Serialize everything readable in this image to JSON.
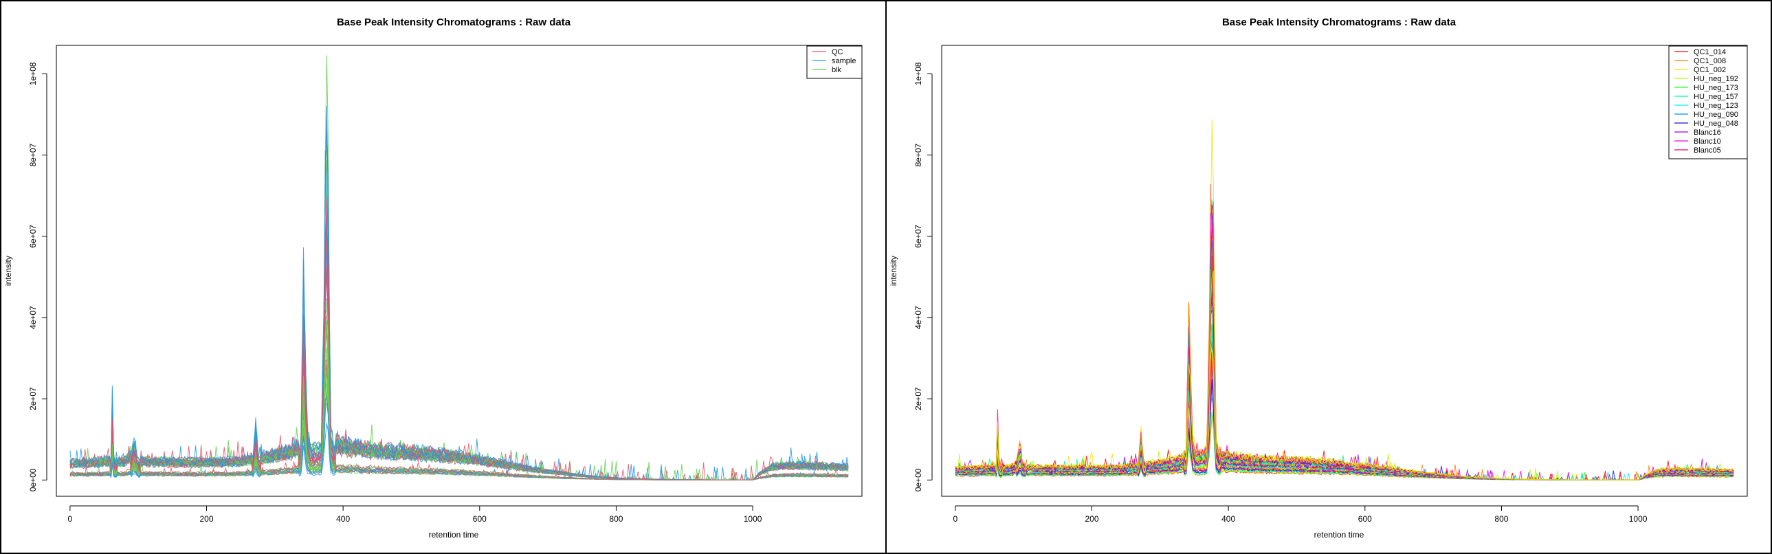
{
  "chart_data": [
    {
      "type": "line",
      "title": "Base Peak Intensity Chromatograms : Raw data",
      "xlabel": "retention time",
      "ylabel": "intensity",
      "xlim": [
        -20,
        1160
      ],
      "ylim": [
        -4000000,
        107000000
      ],
      "x_ticks": [
        0,
        200,
        400,
        600,
        800,
        1000
      ],
      "x_tick_labels": [
        "0",
        "200",
        "400",
        "600",
        "800",
        "1000"
      ],
      "y_ticks": [
        0,
        20000000,
        40000000,
        60000000,
        80000000,
        100000000
      ],
      "y_tick_labels": [
        "0e+00",
        "2e+07",
        "4e+07",
        "6e+07",
        "8e+07",
        "1e+08"
      ],
      "grid": false,
      "legend_position": "top-right",
      "legend": [
        {
          "name": "QC",
          "color": "#DF536B"
        },
        {
          "name": "sample",
          "color": "#2297E6"
        },
        {
          "name": "blk",
          "color": "#61D04F"
        }
      ],
      "group_colors": [
        "#DF536B",
        "#2297E6",
        "#61D04F"
      ],
      "series_count": 40,
      "shape": {
        "x": [
          0,
          20,
          40,
          60,
          62,
          64,
          66,
          70,
          80,
          90,
          95,
          98,
          102,
          110,
          130,
          160,
          200,
          240,
          268,
          272,
          276,
          290,
          320,
          338,
          342,
          345,
          348,
          352,
          360,
          368,
          372,
          375,
          378,
          380,
          382,
          386,
          400,
          430,
          460,
          500,
          540,
          580,
          620,
          660,
          700,
          740,
          780,
          820,
          860,
          900,
          940,
          980,
          1000,
          1010,
          1030,
          1060,
          1100,
          1140
        ],
        "y": [
          4000000,
          4000000,
          4200000,
          4500000,
          20000000,
          6000000,
          4300000,
          4300000,
          4300000,
          6000000,
          11000000,
          5500000,
          4300000,
          4300000,
          4300000,
          4200000,
          4200000,
          4300000,
          5000000,
          14000000,
          5200000,
          5500000,
          6500000,
          8000000,
          50000000,
          28000000,
          12000000,
          8000000,
          8000000,
          9000000,
          40000000,
          100000000,
          75000000,
          40000000,
          12000000,
          8500000,
          8000000,
          7200000,
          6800000,
          6500000,
          6000000,
          5200000,
          4200000,
          3000000,
          2000000,
          1200000,
          600000,
          300000,
          150000,
          80000,
          50000,
          30000,
          20000,
          1500000,
          3200000,
          3500000,
          3300000,
          3000000
        ]
      }
    },
    {
      "type": "line",
      "title": "Base Peak Intensity Chromatograms : Raw data",
      "xlabel": "retention time",
      "ylabel": "intensity",
      "xlim": [
        -20,
        1160
      ],
      "ylim": [
        -4000000,
        107000000
      ],
      "x_ticks": [
        0,
        200,
        400,
        600,
        800,
        1000
      ],
      "x_tick_labels": [
        "0",
        "200",
        "400",
        "600",
        "800",
        "1000"
      ],
      "y_ticks": [
        0,
        20000000,
        40000000,
        60000000,
        80000000,
        100000000
      ],
      "y_tick_labels": [
        "0e+00",
        "2e+07",
        "4e+07",
        "6e+07",
        "8e+07",
        "1e+08"
      ],
      "grid": false,
      "legend_position": "top-right",
      "legend": [
        {
          "name": "QC1_014",
          "color": "#FF0000"
        },
        {
          "name": "QC1_008",
          "color": "#FF8000"
        },
        {
          "name": "QC1_002",
          "color": "#FFE000"
        },
        {
          "name": "HU_neg_192",
          "color": "#B0FF00"
        },
        {
          "name": "HU_neg_173",
          "color": "#20FF20"
        },
        {
          "name": "HU_neg_157",
          "color": "#00FF90"
        },
        {
          "name": "HU_neg_123",
          "color": "#00F0FF"
        },
        {
          "name": "HU_neg_090",
          "color": "#0090FF"
        },
        {
          "name": "HU_neg_048",
          "color": "#1010FF"
        },
        {
          "name": "Blanc16",
          "color": "#A000FF"
        },
        {
          "name": "Blanc10",
          "color": "#FF00E0"
        },
        {
          "name": "Blanc05",
          "color": "#FF0060"
        }
      ],
      "group_colors": [
        "#FF0000",
        "#FF8000",
        "#FFE000",
        "#B0FF00",
        "#20FF20",
        "#00FF90",
        "#00F0FF",
        "#0090FF",
        "#1010FF",
        "#A000FF",
        "#FF00E0",
        "#FF0060"
      ],
      "series_count": 40,
      "shape": {
        "x": [
          0,
          20,
          40,
          60,
          62,
          64,
          66,
          70,
          80,
          90,
          95,
          98,
          102,
          110,
          130,
          160,
          200,
          240,
          268,
          272,
          276,
          290,
          320,
          338,
          342,
          345,
          348,
          352,
          360,
          368,
          372,
          375,
          378,
          380,
          382,
          386,
          400,
          430,
          460,
          500,
          540,
          580,
          620,
          660,
          700,
          740,
          780,
          820,
          860,
          900,
          940,
          980,
          1000,
          1010,
          1030,
          1060,
          1100,
          1140
        ],
        "y": [
          4000000,
          4000000,
          4200000,
          4500000,
          20000000,
          6000000,
          4300000,
          4300000,
          4300000,
          6000000,
          11000000,
          5500000,
          4300000,
          4300000,
          4300000,
          4200000,
          4200000,
          4300000,
          5000000,
          14000000,
          5200000,
          5500000,
          6500000,
          8000000,
          50000000,
          28000000,
          12000000,
          8000000,
          8000000,
          9000000,
          40000000,
          100000000,
          75000000,
          40000000,
          12000000,
          8500000,
          8000000,
          7200000,
          6800000,
          6500000,
          6000000,
          5200000,
          4200000,
          3000000,
          2000000,
          1200000,
          600000,
          300000,
          150000,
          80000,
          50000,
          30000,
          20000,
          1500000,
          3200000,
          3500000,
          3300000,
          3000000
        ]
      }
    }
  ]
}
